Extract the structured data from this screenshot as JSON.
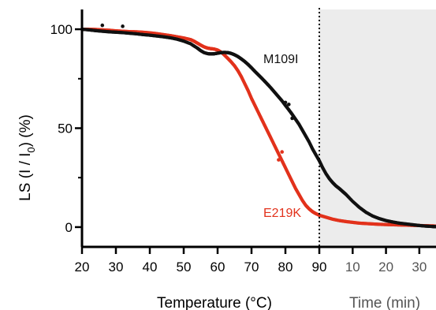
{
  "chart_data": {
    "type": "scatter",
    "title": "",
    "ylabel": {
      "main": "LS (I / I",
      "sub": "0",
      "tail": ") (%)"
    },
    "xlabel_temperature": "Temperature (°C)",
    "xlabel_time": "Time (min)",
    "temperature_range": [
      20,
      90
    ],
    "time_range": [
      0,
      35
    ],
    "ylim": [
      -10,
      110
    ],
    "temperature_ticks": [
      "20",
      "30",
      "40",
      "50",
      "60",
      "70",
      "80",
      "90"
    ],
    "time_ticks": [
      "10",
      "20",
      "30"
    ],
    "y_ticks": [
      "0",
      "50",
      "100"
    ],
    "divider_at_temperature": 90,
    "grid": false,
    "colors": {
      "M109I": "#111111",
      "E219K": "#e2321c",
      "time_region": "#ececec",
      "axis": "#000000",
      "time_tick_text": "#555555"
    },
    "series": [
      {
        "name": "M109I",
        "temperature": {
          "x": [
            20,
            22,
            24,
            26,
            28,
            30,
            32,
            34,
            36,
            38,
            40,
            42,
            44,
            46,
            48,
            50,
            52,
            54,
            55,
            56,
            57,
            58,
            59,
            60,
            61,
            62,
            63,
            64,
            65,
            66,
            67,
            68,
            69,
            70,
            71,
            72,
            73,
            74,
            75,
            76,
            77,
            78,
            79,
            80,
            81,
            82,
            83,
            84,
            85,
            86,
            87,
            88,
            89,
            90
          ],
          "y": [
            100,
            99.7,
            99.3,
            99,
            98.7,
            98.5,
            98.3,
            98,
            97.7,
            97.3,
            97,
            96.6,
            96.2,
            95.7,
            95,
            94,
            92.7,
            90.5,
            89.2,
            88.2,
            87.7,
            87.5,
            87.6,
            87.9,
            88.2,
            88.3,
            88.2,
            87.8,
            87.1,
            86.2,
            85,
            83.7,
            82.2,
            80.5,
            78.7,
            77,
            75.3,
            73.5,
            71.7,
            69.8,
            67.8,
            65.8,
            63.8,
            61.5,
            59.3,
            57,
            54.5,
            52,
            49,
            46,
            43,
            39.5,
            36.5,
            33.5
          ]
        },
        "time": {
          "x": [
            0,
            1,
            2,
            3,
            4,
            5,
            6,
            7,
            8,
            10,
            12,
            14,
            16,
            18,
            20,
            22,
            24,
            26,
            28,
            30,
            32,
            34,
            35
          ],
          "y": [
            33.5,
            30,
            27,
            24.5,
            22.5,
            20.8,
            19.5,
            18,
            16.5,
            13,
            10,
            7.5,
            5.6,
            4.3,
            3.3,
            2.6,
            2,
            1.6,
            1.2,
            0.8,
            0.5,
            0.3,
            0.2
          ]
        },
        "outliers": [
          {
            "x": 26,
            "y": 102
          },
          {
            "x": 32,
            "y": 101.5
          },
          {
            "x": 80,
            "y": 63
          },
          {
            "x": 81,
            "y": 62
          },
          {
            "x": 82,
            "y": 55
          }
        ]
      },
      {
        "name": "E219K",
        "temperature": {
          "x": [
            20,
            22,
            24,
            26,
            28,
            30,
            32,
            34,
            36,
            38,
            40,
            42,
            44,
            46,
            48,
            50,
            52,
            53,
            54,
            55,
            56,
            57,
            58,
            59,
            60,
            61,
            62,
            63,
            64,
            65,
            66,
            67,
            68,
            69,
            70,
            71,
            72,
            73,
            74,
            75,
            76,
            77,
            78,
            79,
            80,
            81,
            82,
            83,
            84,
            85,
            86,
            87,
            88,
            89,
            90
          ],
          "y": [
            100,
            100,
            99.9,
            99.7,
            99.5,
            99.2,
            99,
            98.8,
            98.7,
            98.5,
            98.2,
            97.8,
            97.3,
            96.8,
            96.2,
            95.6,
            94.8,
            94,
            93,
            92,
            91.1,
            90.5,
            90.2,
            90,
            89.5,
            88.5,
            87,
            85.3,
            83.5,
            81.5,
            79,
            76,
            72.5,
            69,
            65,
            61.5,
            58,
            54.5,
            51,
            47.5,
            44,
            40.5,
            37,
            33.5,
            30,
            26.5,
            23,
            19.5,
            16.5,
            13.5,
            11,
            9.2,
            7.8,
            6.8,
            6
          ]
        },
        "time": {
          "x": [
            0,
            2,
            4,
            6,
            8,
            10,
            12,
            14,
            16,
            18,
            20,
            22,
            24,
            26,
            28,
            30,
            32,
            34,
            35
          ],
          "y": [
            6,
            5,
            4,
            3.3,
            2.8,
            2.4,
            2,
            1.8,
            1.6,
            1.4,
            1.3,
            1.2,
            1.1,
            1,
            0.9,
            0.8,
            0.7,
            0.6,
            0.5
          ]
        },
        "outliers": [
          {
            "x": 78,
            "y": 34
          },
          {
            "x": 79,
            "y": 38
          }
        ]
      }
    ],
    "annotations": [
      {
        "text": "M109I",
        "series": "M109I"
      },
      {
        "text": "E219K",
        "series": "E219K"
      }
    ]
  }
}
